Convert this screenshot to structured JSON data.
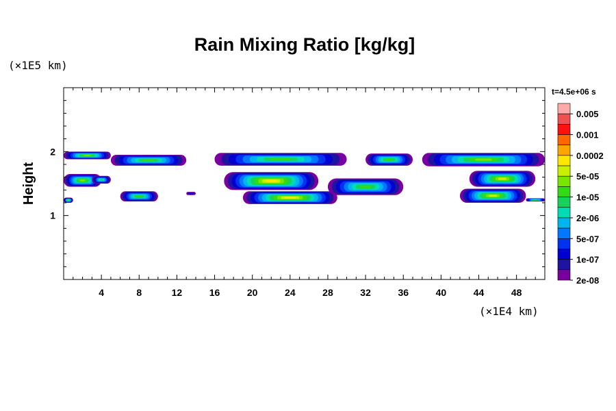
{
  "chart_data": {
    "type": "heatmap",
    "title": "Rain Mixing Ratio [kg/kg]",
    "ylabel": "Height",
    "y_exponent_label": "(×1E5 km)",
    "x_exponent_label": "(×1E4 km)",
    "time_label": "t=4.5e+06 s",
    "xlim": [
      0,
      51
    ],
    "ylim": [
      0,
      3
    ],
    "x_ticks": [
      4,
      8,
      12,
      16,
      20,
      24,
      28,
      32,
      36,
      40,
      44,
      48
    ],
    "x_tick_labels": [
      "4",
      "8",
      "12",
      "16",
      "20",
      "24",
      "28",
      "32",
      "36",
      "40",
      "44",
      "48"
    ],
    "y_ticks": [
      1,
      2
    ],
    "y_tick_labels": [
      "1",
      "2"
    ],
    "colorbar": {
      "labels": [
        "0.005",
        "0.001",
        "0.0002",
        "5e-05",
        "1e-05",
        "2e-06",
        "5e-07",
        "1e-07",
        "2e-08"
      ],
      "colors": [
        "#ffaaaa",
        "#f05050",
        "#ff1010",
        "#ff6600",
        "#ffa500",
        "#ffe600",
        "#c8f000",
        "#78e600",
        "#32dc14",
        "#14d25a",
        "#00dcb4",
        "#00b4f0",
        "#0078ff",
        "#0032f0",
        "#0000d2",
        "#1e14a0",
        "#7800a0"
      ]
    },
    "regions": [
      {
        "x": [
          0,
          5
        ],
        "y": [
          1.88,
          2.0
        ],
        "peak": 9
      },
      {
        "x": [
          0,
          4
        ],
        "y": [
          1.45,
          1.65
        ],
        "peak": 9
      },
      {
        "x": [
          3,
          5
        ],
        "y": [
          1.5,
          1.62
        ],
        "peak": 7
      },
      {
        "x": [
          0,
          1
        ],
        "y": [
          1.2,
          1.28
        ],
        "peak": 9
      },
      {
        "x": [
          5,
          13
        ],
        "y": [
          1.78,
          1.95
        ],
        "peak": 8
      },
      {
        "x": [
          6,
          10
        ],
        "y": [
          1.22,
          1.38
        ],
        "peak": 8
      },
      {
        "x": [
          13,
          14
        ],
        "y": [
          1.32,
          1.37
        ],
        "peak": 2
      },
      {
        "x": [
          16,
          30
        ],
        "y": [
          1.78,
          1.98
        ],
        "peak": 8
      },
      {
        "x": [
          17,
          27
        ],
        "y": [
          1.4,
          1.68
        ],
        "peak": 11
      },
      {
        "x": [
          19,
          29
        ],
        "y": [
          1.18,
          1.38
        ],
        "peak": 11
      },
      {
        "x": [
          28,
          36
        ],
        "y": [
          1.32,
          1.58
        ],
        "peak": 8
      },
      {
        "x": [
          32,
          37
        ],
        "y": [
          1.78,
          1.97
        ],
        "peak": 8
      },
      {
        "x": [
          38,
          51
        ],
        "y": [
          1.77,
          1.98
        ],
        "peak": 9
      },
      {
        "x": [
          43,
          50
        ],
        "y": [
          1.45,
          1.7
        ],
        "peak": 10
      },
      {
        "x": [
          42,
          49
        ],
        "y": [
          1.2,
          1.42
        ],
        "peak": 10
      },
      {
        "x": [
          49,
          51
        ],
        "y": [
          1.22,
          1.27
        ],
        "peak": 9
      }
    ]
  }
}
